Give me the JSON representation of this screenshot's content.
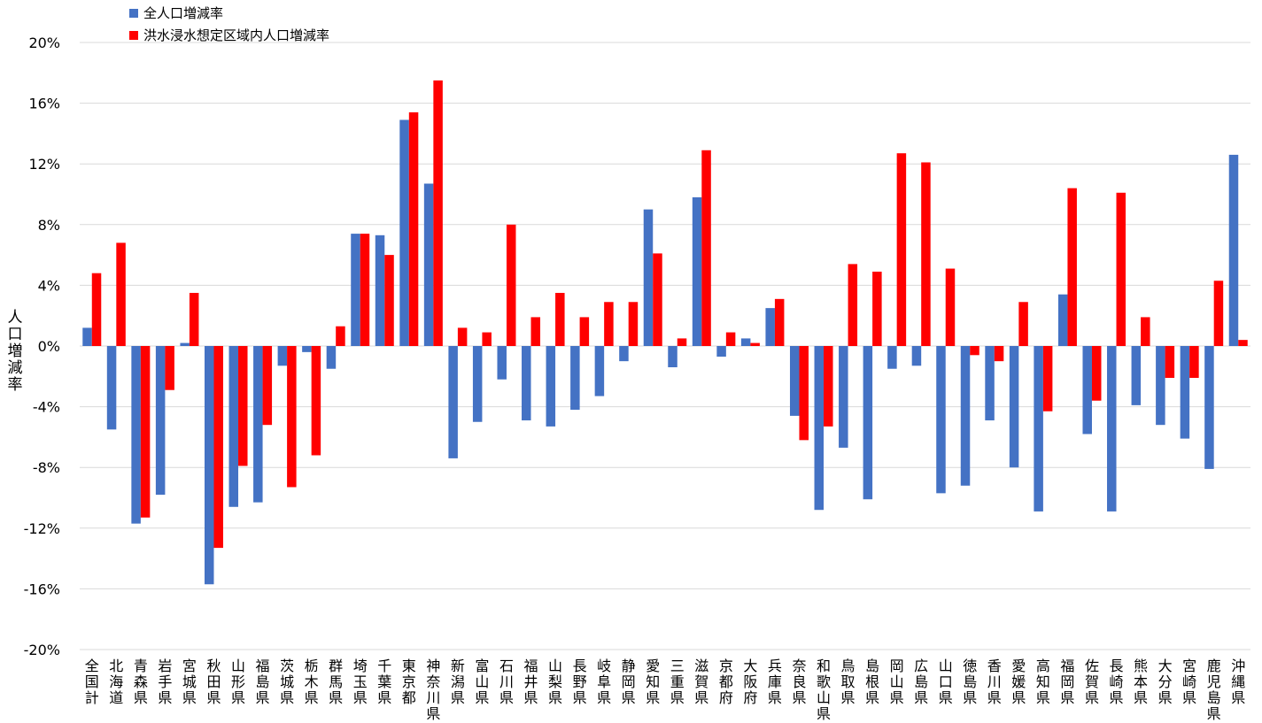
{
  "chart_data": {
    "type": "bar",
    "title": "",
    "xlabel": "",
    "ylabel": "人口増減率",
    "ylim": [
      -20,
      20
    ],
    "yticks": [
      -20,
      -16,
      -12,
      -8,
      -4,
      0,
      4,
      8,
      12,
      16,
      20
    ],
    "ytick_labels": [
      "-20%",
      "-16%",
      "-12%",
      "-8%",
      "-4%",
      "0%",
      "4%",
      "8%",
      "12%",
      "16%",
      "20%"
    ],
    "grid": true,
    "legend": "top-left",
    "categories": [
      "全国計",
      "北海道",
      "青森県",
      "岩手県",
      "宮城県",
      "秋田県",
      "山形県",
      "福島県",
      "茨城県",
      "栃木県",
      "群馬県",
      "埼玉県",
      "千葉県",
      "東京都",
      "神奈川県",
      "新潟県",
      "富山県",
      "石川県",
      "福井県",
      "山梨県",
      "長野県",
      "岐阜県",
      "静岡県",
      "愛知県",
      "三重県",
      "滋賀県",
      "京都府",
      "大阪府",
      "兵庫県",
      "奈良県",
      "和歌山県",
      "鳥取県",
      "島根県",
      "岡山県",
      "広島県",
      "山口県",
      "徳島県",
      "香川県",
      "愛媛県",
      "高知県",
      "福岡県",
      "佐賀県",
      "長崎県",
      "熊本県",
      "大分県",
      "宮崎県",
      "鹿児島県",
      "沖縄県"
    ],
    "series": [
      {
        "name": "全人口増減率",
        "color": "#4472C4",
        "values": [
          1.2,
          -5.5,
          -11.7,
          -9.8,
          0.2,
          -15.7,
          -10.6,
          -10.3,
          -1.3,
          -0.4,
          -1.5,
          7.4,
          7.3,
          14.9,
          10.7,
          -7.4,
          -5.0,
          -2.2,
          -4.9,
          -5.3,
          -4.2,
          -3.3,
          -1.0,
          9.0,
          -1.4,
          9.8,
          -0.7,
          0.5,
          2.5,
          -4.6,
          -10.8,
          -6.7,
          -10.1,
          -1.5,
          -1.3,
          -9.7,
          -9.2,
          -4.9,
          -8.0,
          -10.9,
          3.4,
          -5.8,
          -10.9,
          -3.9,
          -5.2,
          -6.1,
          -8.1,
          12.6
        ]
      },
      {
        "name": "洪水浸水想定区域内人口増減率",
        "color": "#FF0000",
        "values": [
          4.8,
          6.8,
          -11.3,
          -2.9,
          3.5,
          -13.3,
          -7.9,
          -5.2,
          -9.3,
          -7.2,
          1.3,
          7.4,
          6.0,
          15.4,
          17.5,
          1.2,
          0.9,
          8.0,
          1.9,
          3.5,
          1.9,
          2.9,
          2.9,
          6.1,
          0.5,
          12.9,
          0.9,
          0.2,
          3.1,
          -6.2,
          -5.3,
          5.4,
          4.9,
          12.7,
          12.1,
          5.1,
          -0.6,
          -1.0,
          2.9,
          -4.3,
          10.4,
          -3.6,
          10.1,
          1.9,
          -2.1,
          -2.1,
          4.3,
          0.4
        ]
      }
    ]
  }
}
